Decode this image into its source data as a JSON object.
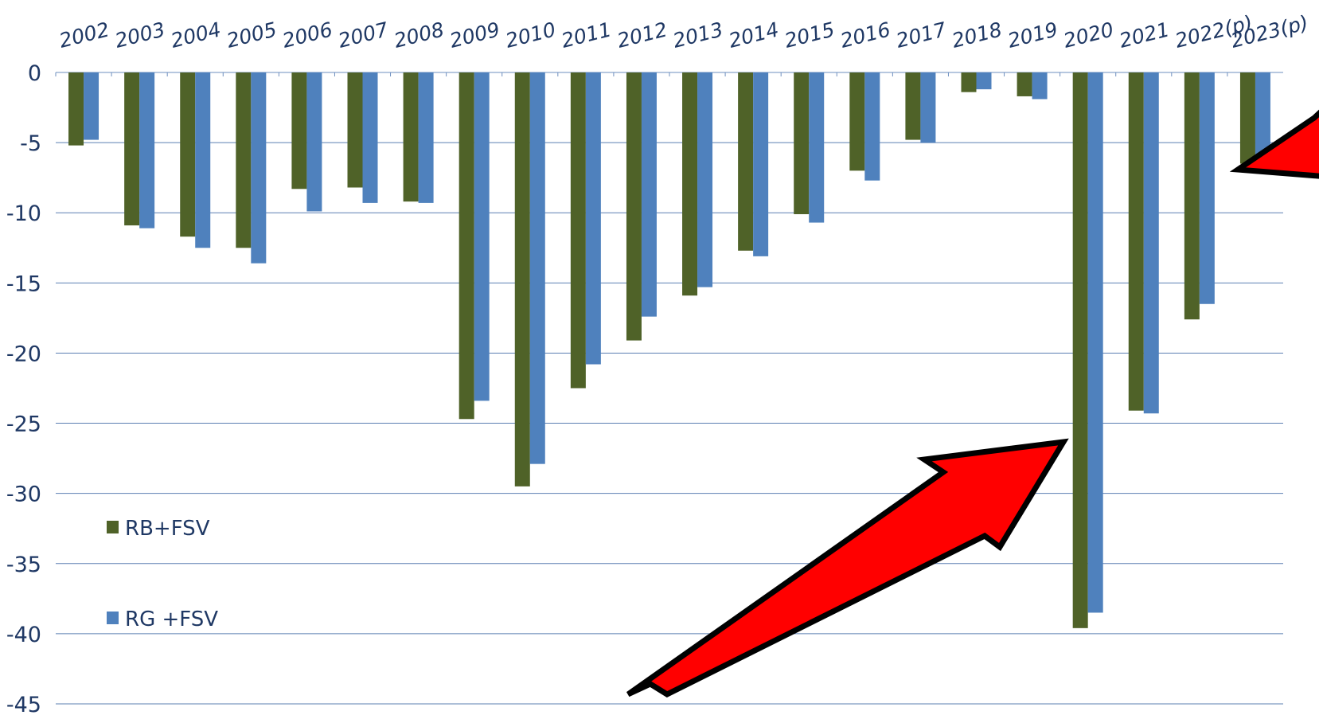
{
  "chart_data": {
    "type": "bar",
    "categories": [
      "2002",
      "2003",
      "2004",
      "2005",
      "2006",
      "2007",
      "2008",
      "2009",
      "2010",
      "2011",
      "2012",
      "2013",
      "2014",
      "2015",
      "2016",
      "2017",
      "2018",
      "2019",
      "2020",
      "2021",
      "2022(p)",
      "2023(p)"
    ],
    "series": [
      {
        "name": "RB+FSV",
        "color": "#4f6228",
        "values": [
          -5.2,
          -10.9,
          -11.7,
          -12.5,
          -8.3,
          -8.2,
          -9.2,
          -24.7,
          -29.5,
          -22.5,
          -19.1,
          -15.9,
          -12.7,
          -10.1,
          -7.0,
          -4.8,
          -1.4,
          -1.7,
          -39.6,
          -24.1,
          -17.6,
          -6.5
        ]
      },
      {
        "name": "RG +FSV",
        "color": "#4f81bd",
        "values": [
          -4.8,
          -11.1,
          -12.5,
          -13.6,
          -9.9,
          -9.3,
          -9.3,
          -23.4,
          -27.9,
          -20.8,
          -17.4,
          -15.3,
          -13.1,
          -10.7,
          -7.7,
          -5.0,
          -1.2,
          -1.9,
          -38.5,
          -24.3,
          -16.5,
          -6.0
        ]
      }
    ],
    "yticks": [
      "0",
      "-5",
      "-10",
      "-15",
      "-20",
      "-25",
      "-30",
      "-35",
      "-40",
      "-45"
    ],
    "ylim": [
      -45,
      0
    ],
    "grid": true,
    "legend_position": "bottom-left",
    "annotations": [
      {
        "type": "arrow",
        "color": "#ff0000",
        "target": "2020"
      },
      {
        "type": "arrow",
        "color": "#ff0000",
        "target": "2023(p)"
      }
    ],
    "title": "",
    "xlabel": "",
    "ylabel": ""
  }
}
